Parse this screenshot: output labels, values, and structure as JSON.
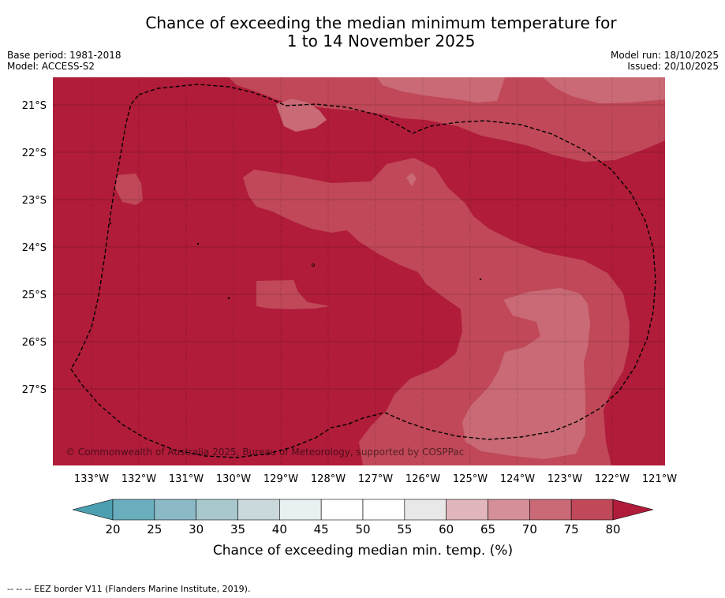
{
  "title": {
    "line1": "Chance of exceeding the median minimum temperature for",
    "line2": "1 to 14 November 2025"
  },
  "meta": {
    "base_period": "Base period: 1981-2018",
    "model": "Model: ACCESS-S2",
    "model_run": "Model run: 18/10/2025",
    "issued": "Issued: 20/10/2025"
  },
  "map": {
    "lat_labels": [
      "21°S",
      "22°S",
      "23°S",
      "24°S",
      "25°S",
      "26°S",
      "27°S"
    ],
    "lon_labels": [
      "133°W",
      "132°W",
      "131°W",
      "130°W",
      "129°W",
      "128°W",
      "127°W",
      "126°W",
      "125°W",
      "124°W",
      "123°W",
      "122°W",
      "121°W"
    ],
    "copyright": "© Commonwealth of Australia 2025, Bureau of Meteorology, supported by COSPPac",
    "band_colors": {
      "above_80": "#b01c3a",
      "75_80": "#c04858",
      "70_75": "#c96a76"
    }
  },
  "colorbar": {
    "ticks": [
      "20",
      "25",
      "30",
      "35",
      "40",
      "45",
      "50",
      "55",
      "60",
      "65",
      "70",
      "75",
      "80"
    ],
    "colors": [
      "#6aadbd",
      "#8bbac6",
      "#a8c8ce",
      "#c9d9dc",
      "#e9f0f1",
      "#ffffff",
      "#ffffff",
      "#e8e8e8",
      "#e1b6bc",
      "#d48f98",
      "#c96a76",
      "#c04858"
    ],
    "low_extend_color": "#4b9fb0",
    "high_extend_color": "#b01c3a",
    "label": "Chance of exceeding median min. temp. (%)"
  },
  "footnote": "--  --  -- EEZ border V11 (Flanders Marine Institute, 2019)."
}
